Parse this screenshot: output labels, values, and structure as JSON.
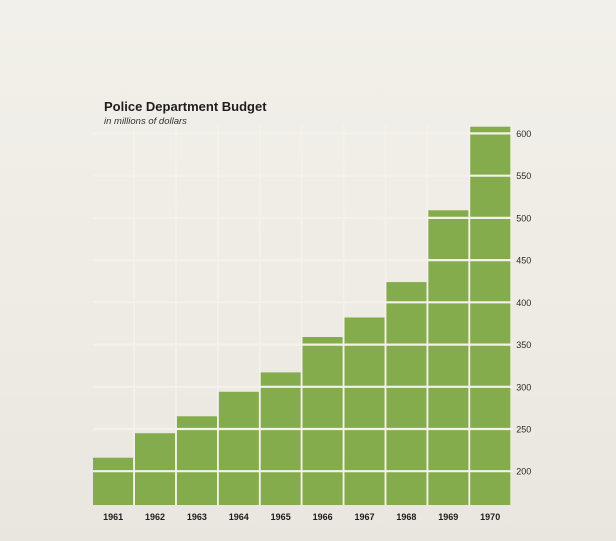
{
  "chart_data": {
    "type": "bar",
    "title": "Police Department Budget",
    "subtitle": "in millions of dollars",
    "xlabel": "",
    "ylabel": "",
    "categories": [
      "1961",
      "1962",
      "1963",
      "1964",
      "1965",
      "1966",
      "1967",
      "1968",
      "1969",
      "1970"
    ],
    "values": [
      216,
      245,
      265,
      294,
      317,
      359,
      382,
      424,
      509,
      608
    ],
    "ylim": [
      160,
      610
    ],
    "yticks": [
      200,
      250,
      300,
      350,
      400,
      450,
      500,
      550,
      600
    ],
    "ytick_labels": [
      "200",
      "250",
      "300",
      "350",
      "400",
      "450",
      "500",
      "550",
      "600"
    ],
    "y_axis_side": "right",
    "grid": true,
    "legend": "none"
  },
  "colors": {
    "bar": "#84ac4c",
    "grid": "#f4f1ea",
    "background": "#efece6"
  }
}
